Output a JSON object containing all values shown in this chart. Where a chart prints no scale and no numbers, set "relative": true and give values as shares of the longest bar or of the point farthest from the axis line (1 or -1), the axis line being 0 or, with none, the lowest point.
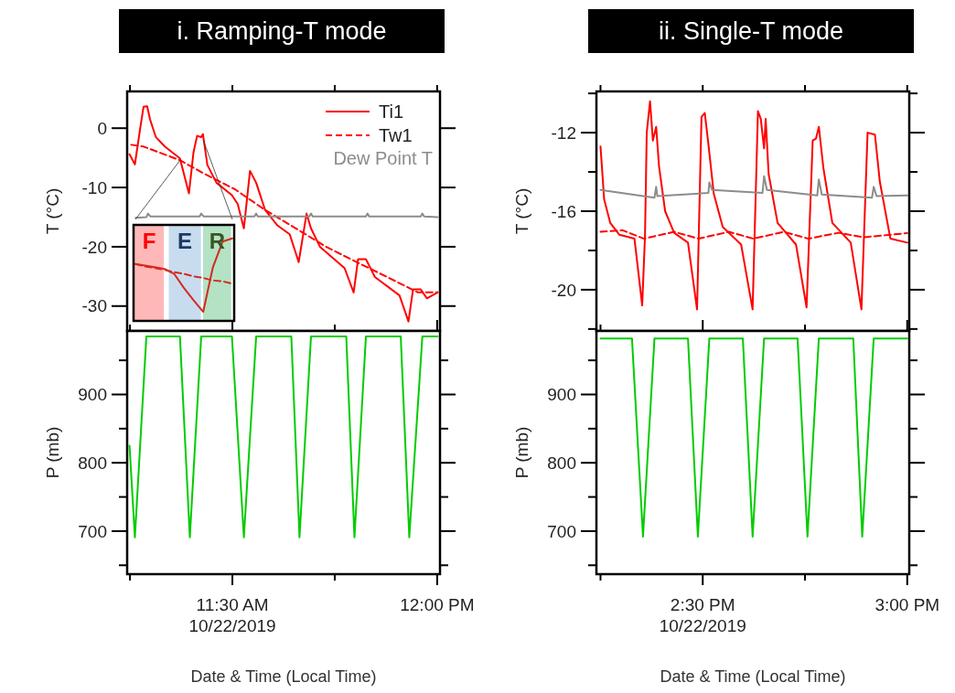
{
  "chart_data": [
    {
      "type": "line",
      "title": "i. Ramping-T mode",
      "ylabel": "T (°C)",
      "xlim": [
        "2019-10-22T11:14:35",
        "2019-10-22T12:00:25"
      ],
      "ylim": [
        -34.2,
        6.2
      ],
      "tick_labels": "y",
      "legend": "top right",
      "xticks": [
        {
          "value": "2019-10-22T11:15",
          "label": null
        },
        {
          "value": "2019-10-22T11:30",
          "label": null
        },
        {
          "value": "2019-10-22T11:45",
          "label": null
        },
        {
          "value": "2019-10-22T12:00",
          "label": null
        }
      ],
      "yticks": [
        -30,
        -20,
        -10,
        0
      ],
      "annotations": [
        "Dew Point T"
      ],
      "series": [
        {
          "name": "Ti1",
          "color": "#ff0000",
          "line_style": "solid",
          "x": [
            "2019-10-22T11:14:56",
            "2019-10-22T11:15:43",
            "2019-10-22T11:16:30",
            "2019-10-22T11:16:59",
            "2019-10-22T11:17:31",
            "2019-10-22T11:17:56",
            "2019-10-22T11:18:47",
            "2019-10-22T11:20:06",
            "2019-10-22T11:22:19",
            "2019-10-22T11:23:38",
            "2019-10-22T11:24:18",
            "2019-10-22T11:24:50",
            "2019-10-22T11:25:26",
            "2019-10-22T11:25:41",
            "2019-10-22T11:26:20",
            "2019-10-22T11:27:40",
            "2019-10-22T11:29:56",
            "2019-10-22T11:30:47",
            "2019-10-22T11:31:41",
            "2019-10-22T11:32:35",
            "2019-10-22T11:33:29",
            "2019-10-22T11:34:48",
            "2019-10-22T11:36:36",
            "2019-10-22T11:38:24",
            "2019-10-22T11:39:43",
            "2019-10-22T11:40:52",
            "2019-10-22T11:41:31",
            "2019-10-22T11:42:50",
            "2019-10-22T11:46:26",
            "2019-10-22T11:47:46",
            "2019-10-22T11:48:25",
            "2019-10-22T11:49:34",
            "2019-10-22T11:50:53",
            "2019-10-22T11:54:29",
            "2019-10-22T11:55:48",
            "2019-10-22T11:56:28",
            "2019-10-22T11:57:36",
            "2019-10-22T11:58:30",
            "2019-10-22T12:00:04"
          ],
          "values": [
            -4.4,
            -6.1,
            0,
            3.6,
            3.7,
            1.5,
            -1.5,
            -3.1,
            -5.1,
            -11,
            -4.1,
            -1.3,
            -1.5,
            -1,
            -6.2,
            -9.2,
            -11.3,
            -12.8,
            -16.9,
            -7.2,
            -9.2,
            -13.8,
            -16.4,
            -17.9,
            -22.6,
            -14.4,
            -16.9,
            -20,
            -23.6,
            -27.7,
            -22.1,
            -22.1,
            -25.1,
            -28.2,
            -32.6,
            -27.2,
            -27.2,
            -28.7,
            -27.7
          ]
        },
        {
          "name": "Tw1",
          "color": "#ff0000",
          "line_style": "dashed",
          "x": [
            "2019-10-22T11:15:11",
            "2019-10-22T11:16:59",
            "2019-10-22T11:22:19",
            "2019-10-22T11:25:55",
            "2019-10-22T11:30:22",
            "2019-10-22T11:34:48",
            "2019-10-22T11:39:18",
            "2019-10-22T11:43:44",
            "2019-10-22T11:48:14",
            "2019-10-22T11:52:41",
            "2019-10-22T11:57:11",
            "2019-10-22T12:00:04"
          ],
          "values": [
            -2.8,
            -3.1,
            -5.4,
            -7.7,
            -10.3,
            -13.8,
            -16.9,
            -20,
            -22.6,
            -25.1,
            -27.7,
            -27.7
          ]
        },
        {
          "color": "#8c8c8c",
          "line_style": "solid",
          "x": [
            "2019-10-22T11:15:50",
            "2019-10-22T11:17:24",
            "2019-10-22T11:17:38",
            "2019-10-22T11:18:00",
            "2019-10-22T11:25:12",
            "2019-10-22T11:25:26",
            "2019-10-22T11:25:48",
            "2019-10-22T11:33:14",
            "2019-10-22T11:33:29",
            "2019-10-22T11:33:43",
            "2019-10-22T11:41:17",
            "2019-10-22T11:41:31",
            "2019-10-22T11:41:46",
            "2019-10-22T11:49:34",
            "2019-10-22T11:49:48",
            "2019-10-22T11:50:02",
            "2019-10-22T11:57:36",
            "2019-10-22T11:57:50",
            "2019-10-22T11:58:05",
            "2019-10-22T12:00:04"
          ],
          "values": [
            -15.1,
            -15,
            -14.4,
            -14.9,
            -14.9,
            -14.4,
            -14.9,
            -14.9,
            -14.4,
            -14.9,
            -14.9,
            -14.4,
            -14.9,
            -14.9,
            -14.4,
            -14.9,
            -14.9,
            -14.4,
            -14.9,
            -15
          ]
        }
      ]
    },
    {
      "type": "line",
      "relative": true,
      "categories": [
        null,
        null,
        null,
        null,
        null,
        null,
        null,
        null,
        null,
        null,
        null
      ],
      "annotations": [
        "F",
        "E",
        "R"
      ],
      "series": [
        {
          "color": "#d42a1e",
          "line_style": "solid",
          "values": [
            0.69,
            0.67,
            0.65,
            0.63,
            0.57,
            0.4,
            0.25,
            0.11,
            0.65,
            0.96,
            1
          ]
        },
        {
          "color": "#d42a1e",
          "line_style": "dashed",
          "values": [
            0.69,
            0.66,
            0.64,
            0.62,
            0.59,
            0.57,
            0.54,
            0.52,
            0.49,
            0.48,
            0.45
          ]
        }
      ]
    },
    {
      "type": "line",
      "ylabel": "P (mb)",
      "xlabel": "Date & Time (Local Time)",
      "xlim": [
        "2019-10-22T11:14:35",
        "2019-10-22T12:00:25"
      ],
      "ylim": [
        637,
        993
      ],
      "xticks": [
        {
          "value": "2019-10-22T11:15",
          "label": null
        },
        {
          "value": "2019-10-22T11:30",
          "label": "11:30 AM\n10/22/2019"
        },
        {
          "value": "2019-10-22T11:45",
          "label": null
        },
        {
          "value": "2019-10-22T12:00",
          "label": "12:00 PM"
        }
      ],
      "yticks": [
        {
          "value": 650,
          "label": null
        },
        700,
        {
          "value": 750,
          "label": null
        },
        800,
        {
          "value": 850,
          "label": null
        },
        900,
        {
          "value": 950,
          "label": null
        }
      ],
      "series": [
        {
          "color": "#00cc00",
          "line_style": "solid",
          "x": [
            "2019-10-22T11:14:56",
            "2019-10-22T11:15:43",
            "2019-10-22T11:17:24",
            "2019-10-22T11:22:19",
            "2019-10-22T11:23:46",
            "2019-10-22T11:25:26",
            "2019-10-22T11:29:56",
            "2019-10-22T11:31:41",
            "2019-10-22T11:33:29",
            "2019-10-22T11:38:38",
            "2019-10-22T11:39:50",
            "2019-10-22T11:41:31",
            "2019-10-22T11:46:41",
            "2019-10-22T11:47:53",
            "2019-10-22T11:49:34",
            "2019-10-22T11:54:40",
            "2019-10-22T11:55:55",
            "2019-10-22T11:57:50",
            "2019-10-22T12:00:04"
          ],
          "values": [
            825,
            691,
            985,
            985,
            691,
            985,
            985,
            691,
            985,
            985,
            691,
            985,
            985,
            691,
            985,
            985,
            691,
            985,
            985
          ]
        }
      ]
    },
    {
      "type": "line",
      "title": "ii. Single-T mode",
      "ylabel": "T (°C)",
      "xlim": [
        "2019-10-22T14:14:24",
        "2019-10-22T15:00:18"
      ],
      "ylim": [
        -22.1,
        -9.9
      ],
      "tick_labels": "y",
      "xticks": [
        {
          "value": "2019-10-22T14:15",
          "label": null
        },
        {
          "value": "2019-10-22T14:30",
          "label": null
        },
        {
          "value": "2019-10-22T14:45",
          "label": null
        },
        {
          "value": "2019-10-22T15:00",
          "label": null
        }
      ],
      "yticks": [
        {
          "value": -22,
          "label": null
        },
        -20,
        {
          "value": -18,
          "label": null
        },
        -16,
        {
          "value": -14,
          "label": null
        },
        -12,
        {
          "value": -10,
          "label": null
        }
      ],
      "series": [
        {
          "color": "#ff0000",
          "line_style": "solid",
          "x": [
            "2019-10-22T14:15:00",
            "2019-10-22T14:15:32",
            "2019-10-22T14:16:26",
            "2019-10-22T14:17:46",
            "2019-10-22T14:19:59",
            "2019-10-22T14:21:07",
            "2019-10-22T14:21:32",
            "2019-10-22T14:21:47",
            "2019-10-22T14:22:16",
            "2019-10-22T14:22:41",
            "2019-10-22T14:23:10",
            "2019-10-22T14:23:35",
            "2019-10-22T14:24:29",
            "2019-10-22T14:25:48",
            "2019-10-22T14:27:50",
            "2019-10-22T14:29:10",
            "2019-10-22T14:29:49",
            "2019-10-22T14:30:18",
            "2019-10-22T14:30:50",
            "2019-10-22T14:31:37",
            "2019-10-22T14:32:56",
            "2019-10-22T14:35:38",
            "2019-10-22T14:37:19",
            "2019-10-22T14:38:06",
            "2019-10-22T14:38:31",
            "2019-10-22T14:39:00",
            "2019-10-22T14:39:14",
            "2019-10-22T14:39:40",
            "2019-10-22T14:40:59",
            "2019-10-22T14:43:41",
            "2019-10-22T14:45:14",
            "2019-10-22T14:46:08",
            "2019-10-22T14:46:37",
            "2019-10-22T14:47:02",
            "2019-10-22T14:47:42",
            "2019-10-22T14:49:01",
            "2019-10-22T14:51:43",
            "2019-10-22T14:53:17",
            "2019-10-22T14:54:11",
            "2019-10-22T14:55:16",
            "2019-10-22T14:55:59",
            "2019-10-22T14:57:32",
            "2019-10-22T15:00:00"
          ],
          "values": [
            -12.7,
            -15.4,
            -16.6,
            -17.2,
            -17.4,
            -20.8,
            -17.2,
            -12,
            -10.4,
            -12.4,
            -11.7,
            -13.7,
            -16,
            -17.1,
            -17.6,
            -21,
            -11.2,
            -11,
            -12.6,
            -15.1,
            -16.8,
            -17.7,
            -21,
            -10.9,
            -11.3,
            -12.8,
            -11.3,
            -14.1,
            -16.6,
            -17.7,
            -20.9,
            -12.4,
            -12.3,
            -11.7,
            -13.8,
            -16.6,
            -17.6,
            -21,
            -12,
            -12.1,
            -14.5,
            -17.4,
            -17.6
          ]
        },
        {
          "color": "#ff0000",
          "line_style": "dashed",
          "x": [
            "2019-10-22T14:15:00",
            "2019-10-22T14:18:14",
            "2019-10-22T14:21:22",
            "2019-10-22T14:25:48",
            "2019-10-22T14:29:24",
            "2019-10-22T14:33:50",
            "2019-10-22T14:37:26",
            "2019-10-22T14:41:53",
            "2019-10-22T14:45:29",
            "2019-10-22T14:49:55",
            "2019-10-22T14:53:31",
            "2019-10-22T15:00:00"
          ],
          "values": [
            -17.05,
            -16.97,
            -17.4,
            -17.05,
            -17.4,
            -17.05,
            -17.4,
            -17.05,
            -17.4,
            -17.1,
            -17.33,
            -17.12
          ]
        },
        {
          "color": "#8c8c8c",
          "line_style": "solid",
          "x": [
            "2019-10-22T14:15:00",
            "2019-10-22T14:22:55",
            "2019-10-22T14:23:10",
            "2019-10-22T14:23:20",
            "2019-10-22T14:30:50",
            "2019-10-22T14:30:58",
            "2019-10-22T14:31:23",
            "2019-10-22T14:38:46",
            "2019-10-22T14:39:00",
            "2019-10-22T14:39:25",
            "2019-10-22T14:46:48",
            "2019-10-22T14:47:02",
            "2019-10-22T14:47:28",
            "2019-10-22T14:54:50",
            "2019-10-22T14:55:05",
            "2019-10-22T14:55:30",
            "2019-10-22T15:00:00"
          ],
          "values": [
            -14.92,
            -15.31,
            -14.76,
            -15.23,
            -15.07,
            -14.53,
            -14.92,
            -15.07,
            -14.22,
            -14.92,
            -15.2,
            -14.38,
            -15.15,
            -15.31,
            -14.76,
            -15.23,
            -15.2
          ]
        }
      ]
    },
    {
      "type": "line",
      "ylabel": "P (mb)",
      "xlabel": "Date & Time (Local Time)",
      "xlim": [
        "2019-10-22T14:14:24",
        "2019-10-22T15:00:18"
      ],
      "ylim": [
        637,
        993
      ],
      "xticks": [
        {
          "value": "2019-10-22T14:15",
          "label": null
        },
        {
          "value": "2019-10-22T14:30",
          "label": "2:30 PM\n10/22/2019"
        },
        {
          "value": "2019-10-22T14:45",
          "label": null
        },
        {
          "value": "2019-10-22T15:00",
          "label": "3:00 PM"
        }
      ],
      "yticks": [
        {
          "value": 650,
          "label": null
        },
        700,
        {
          "value": 750,
          "label": null
        },
        800,
        {
          "value": 850,
          "label": null
        },
        900,
        {
          "value": 950,
          "label": null
        }
      ],
      "series": [
        {
          "color": "#00cc00",
          "line_style": "solid",
          "x": [
            "2019-10-22T14:15:00",
            "2019-10-22T14:19:37",
            "2019-10-22T14:21:14",
            "2019-10-22T14:22:55",
            "2019-10-22T14:27:50",
            "2019-10-22T14:29:17",
            "2019-10-22T14:30:58",
            "2019-10-22T14:35:53",
            "2019-10-22T14:37:19",
            "2019-10-22T14:39:00",
            "2019-10-22T14:43:55",
            "2019-10-22T14:45:22",
            "2019-10-22T14:47:02",
            "2019-10-22T14:52:05",
            "2019-10-22T14:53:24",
            "2019-10-22T14:55:05",
            "2019-10-22T15:00:00"
          ],
          "values": [
            982,
            982,
            692,
            982,
            982,
            692,
            982,
            982,
            692,
            982,
            982,
            692,
            982,
            982,
            692,
            982,
            982
          ]
        }
      ]
    }
  ]
}
